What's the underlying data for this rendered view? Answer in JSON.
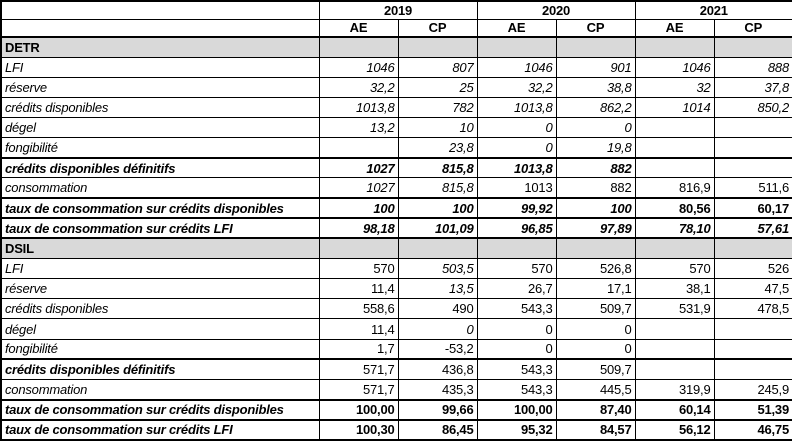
{
  "colors": {
    "section_header_bg": "#d9d9d9",
    "border": "#000000",
    "background": "#ffffff",
    "text": "#000000"
  },
  "table": {
    "years": [
      "2019",
      "2020",
      "2021"
    ],
    "col_headers": [
      "AE",
      "CP",
      "AE",
      "CP",
      "AE",
      "CP"
    ],
    "sections": [
      {
        "name": "DETR",
        "rows": [
          {
            "label": "LFI",
            "label_style": "i",
            "values": [
              "1046",
              "807",
              "1046",
              "901",
              "1046",
              "888"
            ],
            "styles": [
              "i",
              "i",
              "i",
              "i",
              "i",
              "i"
            ]
          },
          {
            "label": "réserve",
            "label_style": "i",
            "values": [
              "32,2",
              "25",
              "32,2",
              "38,8",
              "32",
              "37,8"
            ],
            "styles": [
              "i",
              "i",
              "i",
              "i",
              "i",
              "i"
            ]
          },
          {
            "label": "crédits disponibles",
            "label_style": "i",
            "values": [
              "1013,8",
              "782",
              "1013,8",
              "862,2",
              "1014",
              "850,2"
            ],
            "styles": [
              "i",
              "i",
              "i",
              "i",
              "i",
              "i"
            ]
          },
          {
            "label": "dégel",
            "label_style": "i",
            "values": [
              "13,2",
              "10",
              "0",
              "0",
              "",
              ""
            ],
            "styles": [
              "i",
              "i",
              "i",
              "i",
              "",
              ""
            ]
          },
          {
            "label": "fongibilité",
            "label_style": "i",
            "values": [
              "",
              "23,8",
              "0",
              "19,8",
              "",
              ""
            ],
            "styles": [
              "",
              "i",
              "i",
              "i",
              "",
              ""
            ]
          },
          {
            "label": "crédits disponibles définitifs",
            "label_style": "bi",
            "thick_top": true,
            "values": [
              "1027",
              "815,8",
              "1013,8",
              "882",
              "",
              ""
            ],
            "styles": [
              "bi",
              "bi",
              "bi",
              "bi",
              "",
              ""
            ]
          },
          {
            "label": "consommation",
            "label_style": "i",
            "values": [
              "1027",
              "815,8",
              "1013",
              "882",
              "816,9",
              "511,6"
            ],
            "styles": [
              "i",
              "i",
              "r",
              "r",
              "r",
              "r"
            ]
          },
          {
            "label": "taux de consommation sur crédits disponibles",
            "label_style": "bi",
            "thick_top": true,
            "values": [
              "100",
              "100",
              "99,92",
              "100",
              "80,56",
              "60,17"
            ],
            "styles": [
              "bi",
              "bi",
              "bi",
              "bi",
              "b",
              "b"
            ]
          },
          {
            "label": "taux de consommation sur crédits LFI",
            "label_style": "bi",
            "thick_top": true,
            "values": [
              "98,18",
              "101,09",
              "96,85",
              "97,89",
              "78,10",
              "57,61"
            ],
            "styles": [
              "bi",
              "bi",
              "bi",
              "bi",
              "bi",
              "bi"
            ]
          }
        ]
      },
      {
        "name": "DSIL",
        "rows": [
          {
            "label": "LFI",
            "label_style": "i",
            "values": [
              "570",
              "503,5",
              "570",
              "526,8",
              "570",
              "526"
            ],
            "styles": [
              "r",
              "i",
              "r",
              "r",
              "r",
              "r"
            ]
          },
          {
            "label": "réserve",
            "label_style": "i",
            "values": [
              "11,4",
              "13,5",
              "26,7",
              "17,1",
              "38,1",
              "47,5"
            ],
            "styles": [
              "r",
              "i",
              "r",
              "r",
              "r",
              "r"
            ]
          },
          {
            "label": "crédits disponibles",
            "label_style": "i",
            "values": [
              "558,6",
              "490",
              "543,3",
              "509,7",
              "531,9",
              "478,5"
            ],
            "styles": [
              "r",
              "r",
              "r",
              "r",
              "r",
              "r"
            ]
          },
          {
            "label": "dégel",
            "label_style": "i",
            "values": [
              "11,4",
              "0",
              "0",
              "0",
              "",
              ""
            ],
            "styles": [
              "r",
              "i",
              "r",
              "r",
              "",
              ""
            ]
          },
          {
            "label": "fongibilité",
            "label_style": "i",
            "values": [
              "1,7",
              "-53,2",
              "0",
              "0",
              "",
              ""
            ],
            "styles": [
              "r",
              "r",
              "r",
              "r",
              "",
              ""
            ]
          },
          {
            "label": "crédits disponibles définitifs",
            "label_style": "bi",
            "thick_top": true,
            "values": [
              "571,7",
              "436,8",
              "543,3",
              "509,7",
              "",
              ""
            ],
            "styles": [
              "r",
              "r",
              "r",
              "r",
              "",
              ""
            ]
          },
          {
            "label": "consommation",
            "label_style": "i",
            "values": [
              "571,7",
              "435,3",
              "543,3",
              "445,5",
              "319,9",
              "245,9"
            ],
            "styles": [
              "r",
              "r",
              "r",
              "r",
              "r",
              "r"
            ]
          },
          {
            "label": "taux de consommation sur crédits disponibles",
            "label_style": "bi",
            "thick_top": true,
            "values": [
              "100,00",
              "99,66",
              "100,00",
              "87,40",
              "60,14",
              "51,39"
            ],
            "styles": [
              "b",
              "b",
              "b",
              "b",
              "b",
              "b"
            ]
          },
          {
            "label": "taux de consommation sur crédits LFI",
            "label_style": "bi",
            "thick_top": true,
            "values": [
              "100,30",
              "86,45",
              "95,32",
              "84,57",
              "56,12",
              "46,75"
            ],
            "styles": [
              "b",
              "b",
              "b",
              "b",
              "b",
              "b"
            ]
          }
        ]
      }
    ]
  }
}
